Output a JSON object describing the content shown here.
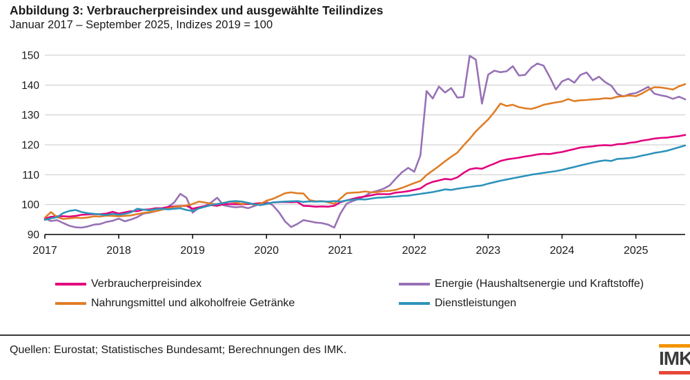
{
  "title": "Abbildung 3: Verbraucherpreisindex und ausgewählte Teilindizes",
  "subtitle": "Januar 2017 – September 2025, Indizes 2019 = 100",
  "source": "Quellen: Eurostat; Statistisches Bundesamt; Berechnungen des IMK.",
  "logo": {
    "text": "IMK",
    "top_bar_color": "#f29400",
    "bottom_bar_color": "#e8463a"
  },
  "chart_data": {
    "type": "line",
    "x_frequency": "monthly",
    "x_start": "2017-01",
    "x_end": "2025-09",
    "x_tick_labels": [
      "2017",
      "2018",
      "2019",
      "2020",
      "2021",
      "2022",
      "2023",
      "2024",
      "2025"
    ],
    "y_ticks": [
      90,
      100,
      110,
      120,
      130,
      140,
      150
    ],
    "ylim": [
      90,
      150
    ],
    "grid": "horizontal",
    "legend_position": "bottom",
    "axis_color": "#000000",
    "grid_color": "#c9c9c9",
    "series": [
      {
        "name": "Verbraucherpreisindex",
        "color": "#e2007d",
        "values": [
          95.3,
          95.9,
          96.1,
          96.1,
          96.0,
          96.2,
          96.6,
          96.7,
          96.8,
          96.8,
          97.0,
          97.6,
          97.0,
          97.4,
          97.8,
          97.8,
          98.3,
          98.4,
          98.8,
          98.8,
          99.2,
          99.4,
          99.5,
          99.6,
          98.6,
          99.1,
          99.5,
          99.8,
          99.6,
          100.1,
          100.2,
          100.1,
          100.1,
          100.2,
          100.3,
          100.5,
          100.3,
          100.7,
          100.8,
          100.9,
          100.8,
          100.9,
          99.6,
          99.5,
          99.3,
          99.4,
          99.3,
          99.6,
          100.8,
          101.4,
          101.9,
          102.4,
          102.7,
          103.1,
          103.5,
          103.5,
          103.5,
          104.0,
          104.2,
          104.5,
          104.9,
          105.4,
          106.8,
          107.6,
          108.1,
          108.6,
          108.4,
          109.1,
          110.6,
          111.8,
          112.2,
          112.0,
          112.9,
          113.7,
          114.6,
          115.1,
          115.4,
          115.7,
          116.1,
          116.4,
          116.8,
          117.0,
          116.9,
          117.3,
          117.6,
          118.1,
          118.6,
          119.1,
          119.3,
          119.5,
          119.8,
          119.9,
          119.8,
          120.2,
          120.3,
          120.7,
          120.9,
          121.4,
          121.7,
          122.1,
          122.3,
          122.4,
          122.7,
          122.9,
          123.3
        ]
      },
      {
        "name": "Nahrungsmittel und alkoholfreie Getränke",
        "color": "#e07d26",
        "values": [
          95.6,
          97.5,
          95.8,
          95.2,
          95.4,
          95.6,
          95.5,
          95.7,
          96.1,
          96.0,
          96.3,
          96.2,
          96.1,
          96.2,
          96.4,
          96.8,
          97.2,
          97.5,
          97.8,
          98.3,
          98.7,
          99.2,
          99.4,
          99.7,
          100.2,
          101.0,
          100.7,
          100.3,
          100.1,
          100.6,
          101.0,
          100.7,
          100.2,
          100.6,
          99.9,
          100.2,
          101.3,
          101.9,
          102.8,
          103.8,
          104.1,
          103.8,
          103.7,
          101.5,
          101.1,
          101.2,
          100.8,
          100.3,
          102.0,
          103.8,
          104.0,
          104.1,
          104.4,
          104.1,
          104.2,
          104.5,
          104.6,
          104.9,
          105.6,
          106.4,
          107.2,
          107.9,
          109.9,
          111.4,
          112.9,
          114.5,
          116.0,
          117.4,
          119.8,
          122.0,
          124.5,
          126.5,
          128.5,
          131.0,
          133.8,
          133.0,
          133.4,
          132.6,
          132.2,
          132.0,
          132.6,
          133.4,
          133.8,
          134.2,
          134.5,
          135.3,
          134.6,
          134.9,
          135.0,
          135.2,
          135.3,
          135.6,
          135.5,
          136.1,
          136.3,
          136.5,
          136.3,
          137.2,
          138.4,
          139.3,
          139.2,
          138.9,
          138.5,
          139.6,
          140.3
        ]
      },
      {
        "name": "Energie (Haushaltsenergie und Kraftstoffe)",
        "color": "#9771b5",
        "values": [
          95.4,
          94.5,
          94.8,
          93.8,
          92.9,
          92.4,
          92.3,
          92.7,
          93.3,
          93.5,
          94.2,
          94.6,
          95.3,
          94.4,
          95.0,
          95.8,
          97.0,
          97.3,
          97.8,
          98.3,
          99.2,
          100.7,
          103.6,
          102.3,
          97.3,
          99.0,
          99.5,
          100.7,
          102.3,
          99.8,
          99.4,
          99.1,
          99.3,
          98.8,
          99.5,
          100.3,
          100.9,
          99.8,
          97.5,
          94.4,
          92.5,
          93.5,
          94.8,
          94.4,
          94.0,
          93.8,
          93.3,
          92.3,
          97.0,
          100.3,
          101.2,
          101.9,
          102.9,
          104.1,
          104.6,
          105.3,
          106.4,
          108.7,
          110.8,
          112.3,
          111.0,
          116.5,
          138.0,
          135.5,
          139.5,
          137.5,
          139.0,
          135.8,
          136.0,
          149.8,
          148.5,
          133.8,
          143.5,
          144.8,
          144.3,
          144.6,
          146.3,
          143.2,
          143.4,
          145.8,
          147.2,
          146.5,
          142.7,
          138.5,
          141.2,
          142.1,
          140.8,
          143.4,
          144.2,
          141.6,
          142.8,
          141.0,
          139.8,
          137.0,
          136.2,
          137.0,
          137.3,
          138.3,
          139.4,
          137.1,
          136.6,
          136.2,
          135.4,
          136.1,
          135.2
        ]
      },
      {
        "name": "Dienstleistungen",
        "color": "#2d93ba",
        "values": [
          94.9,
          95.4,
          95.8,
          97.2,
          97.9,
          98.2,
          97.5,
          97.1,
          96.9,
          96.7,
          96.5,
          96.9,
          96.6,
          96.9,
          97.4,
          98.6,
          98.3,
          98.1,
          98.5,
          98.6,
          98.4,
          98.6,
          98.8,
          98.2,
          97.9,
          98.7,
          99.3,
          99.8,
          100.2,
          100.5,
          101.0,
          101.2,
          101.0,
          100.6,
          100.1,
          99.8,
          100.2,
          100.7,
          100.9,
          101.0,
          101.1,
          101.2,
          100.9,
          101.1,
          101.0,
          101.1,
          101.0,
          101.2,
          101.0,
          101.4,
          101.6,
          101.8,
          101.7,
          102.0,
          102.3,
          102.4,
          102.6,
          102.7,
          102.9,
          103.0,
          103.3,
          103.6,
          103.9,
          104.2,
          104.6,
          105.1,
          104.9,
          105.3,
          105.6,
          105.9,
          106.2,
          106.4,
          107.0,
          107.5,
          108.0,
          108.4,
          108.8,
          109.2,
          109.6,
          110.0,
          110.3,
          110.6,
          110.9,
          111.2,
          111.6,
          112.1,
          112.6,
          113.1,
          113.6,
          114.1,
          114.5,
          114.8,
          114.6,
          115.3,
          115.4,
          115.6,
          115.9,
          116.4,
          116.8,
          117.3,
          117.6,
          118.0,
          118.6,
          119.2,
          119.8
        ]
      }
    ]
  }
}
